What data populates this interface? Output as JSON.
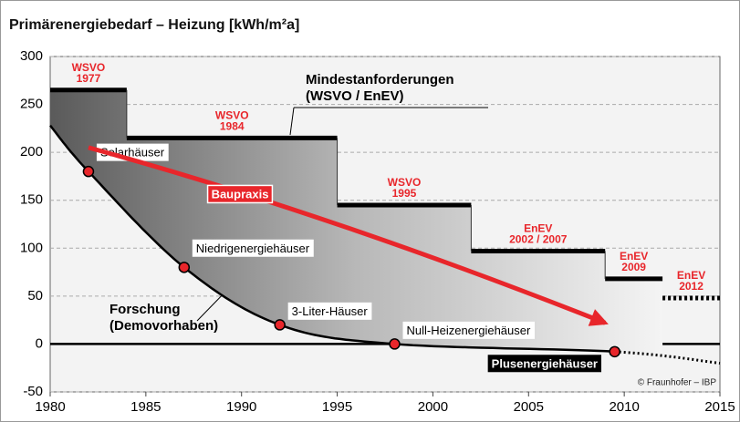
{
  "chart_data": {
    "type": "line",
    "title": "Primärenergiebedarf – Heizung [kWh/m²a]",
    "xlim": [
      1980,
      2015
    ],
    "xticks": [
      1980,
      1985,
      1990,
      1995,
      2000,
      2005,
      2010,
      2015
    ],
    "ylim": [
      -50,
      300
    ],
    "yticks": [
      -50,
      0,
      50,
      100,
      150,
      200,
      250,
      300
    ],
    "grid": true,
    "series": [
      {
        "name": "Mindestanforderungen (WSVO / EnEV)",
        "color": "#000000",
        "bins": [
          1980,
          1984,
          1995,
          2002,
          2009,
          2012,
          2015
        ],
        "values": [
          265,
          215,
          145,
          97,
          68,
          48
        ],
        "styles": [
          "solid",
          "solid",
          "solid",
          "solid",
          "solid",
          "dotted"
        ],
        "labels": [
          [
            "WSVO",
            "1977"
          ],
          [
            "WSVO",
            "1984"
          ],
          [
            "WSVO",
            "1995"
          ],
          [
            "EnEV",
            "2002 / 2007"
          ],
          [
            "EnEV",
            "2009"
          ],
          [
            "EnEV",
            "2012"
          ]
        ],
        "label_color": "#e8262b"
      },
      {
        "name": "Forschung (Demovorhaben)",
        "color": "#000000",
        "x": [
          1980,
          1982,
          1987,
          1992,
          1998,
          2009.5,
          2015
        ],
        "values": [
          228,
          180,
          80,
          20,
          0,
          -8,
          -20
        ],
        "dotted_from": 5,
        "point_labels": [
          null,
          "Solarhäuser",
          "Niedrigenergiehäuser",
          "3-Liter-Häuser",
          "Null-Heizenergiehäuser",
          "Plusenergiehäuser",
          null
        ],
        "marker_color": "#e8262b"
      },
      {
        "name": "Baupraxis",
        "color": "#e8262b",
        "x": [
          1982,
          1995,
          2009
        ],
        "values": [
          205,
          125,
          22
        ]
      }
    ],
    "credit": "© Fraunhofer – IBP"
  }
}
